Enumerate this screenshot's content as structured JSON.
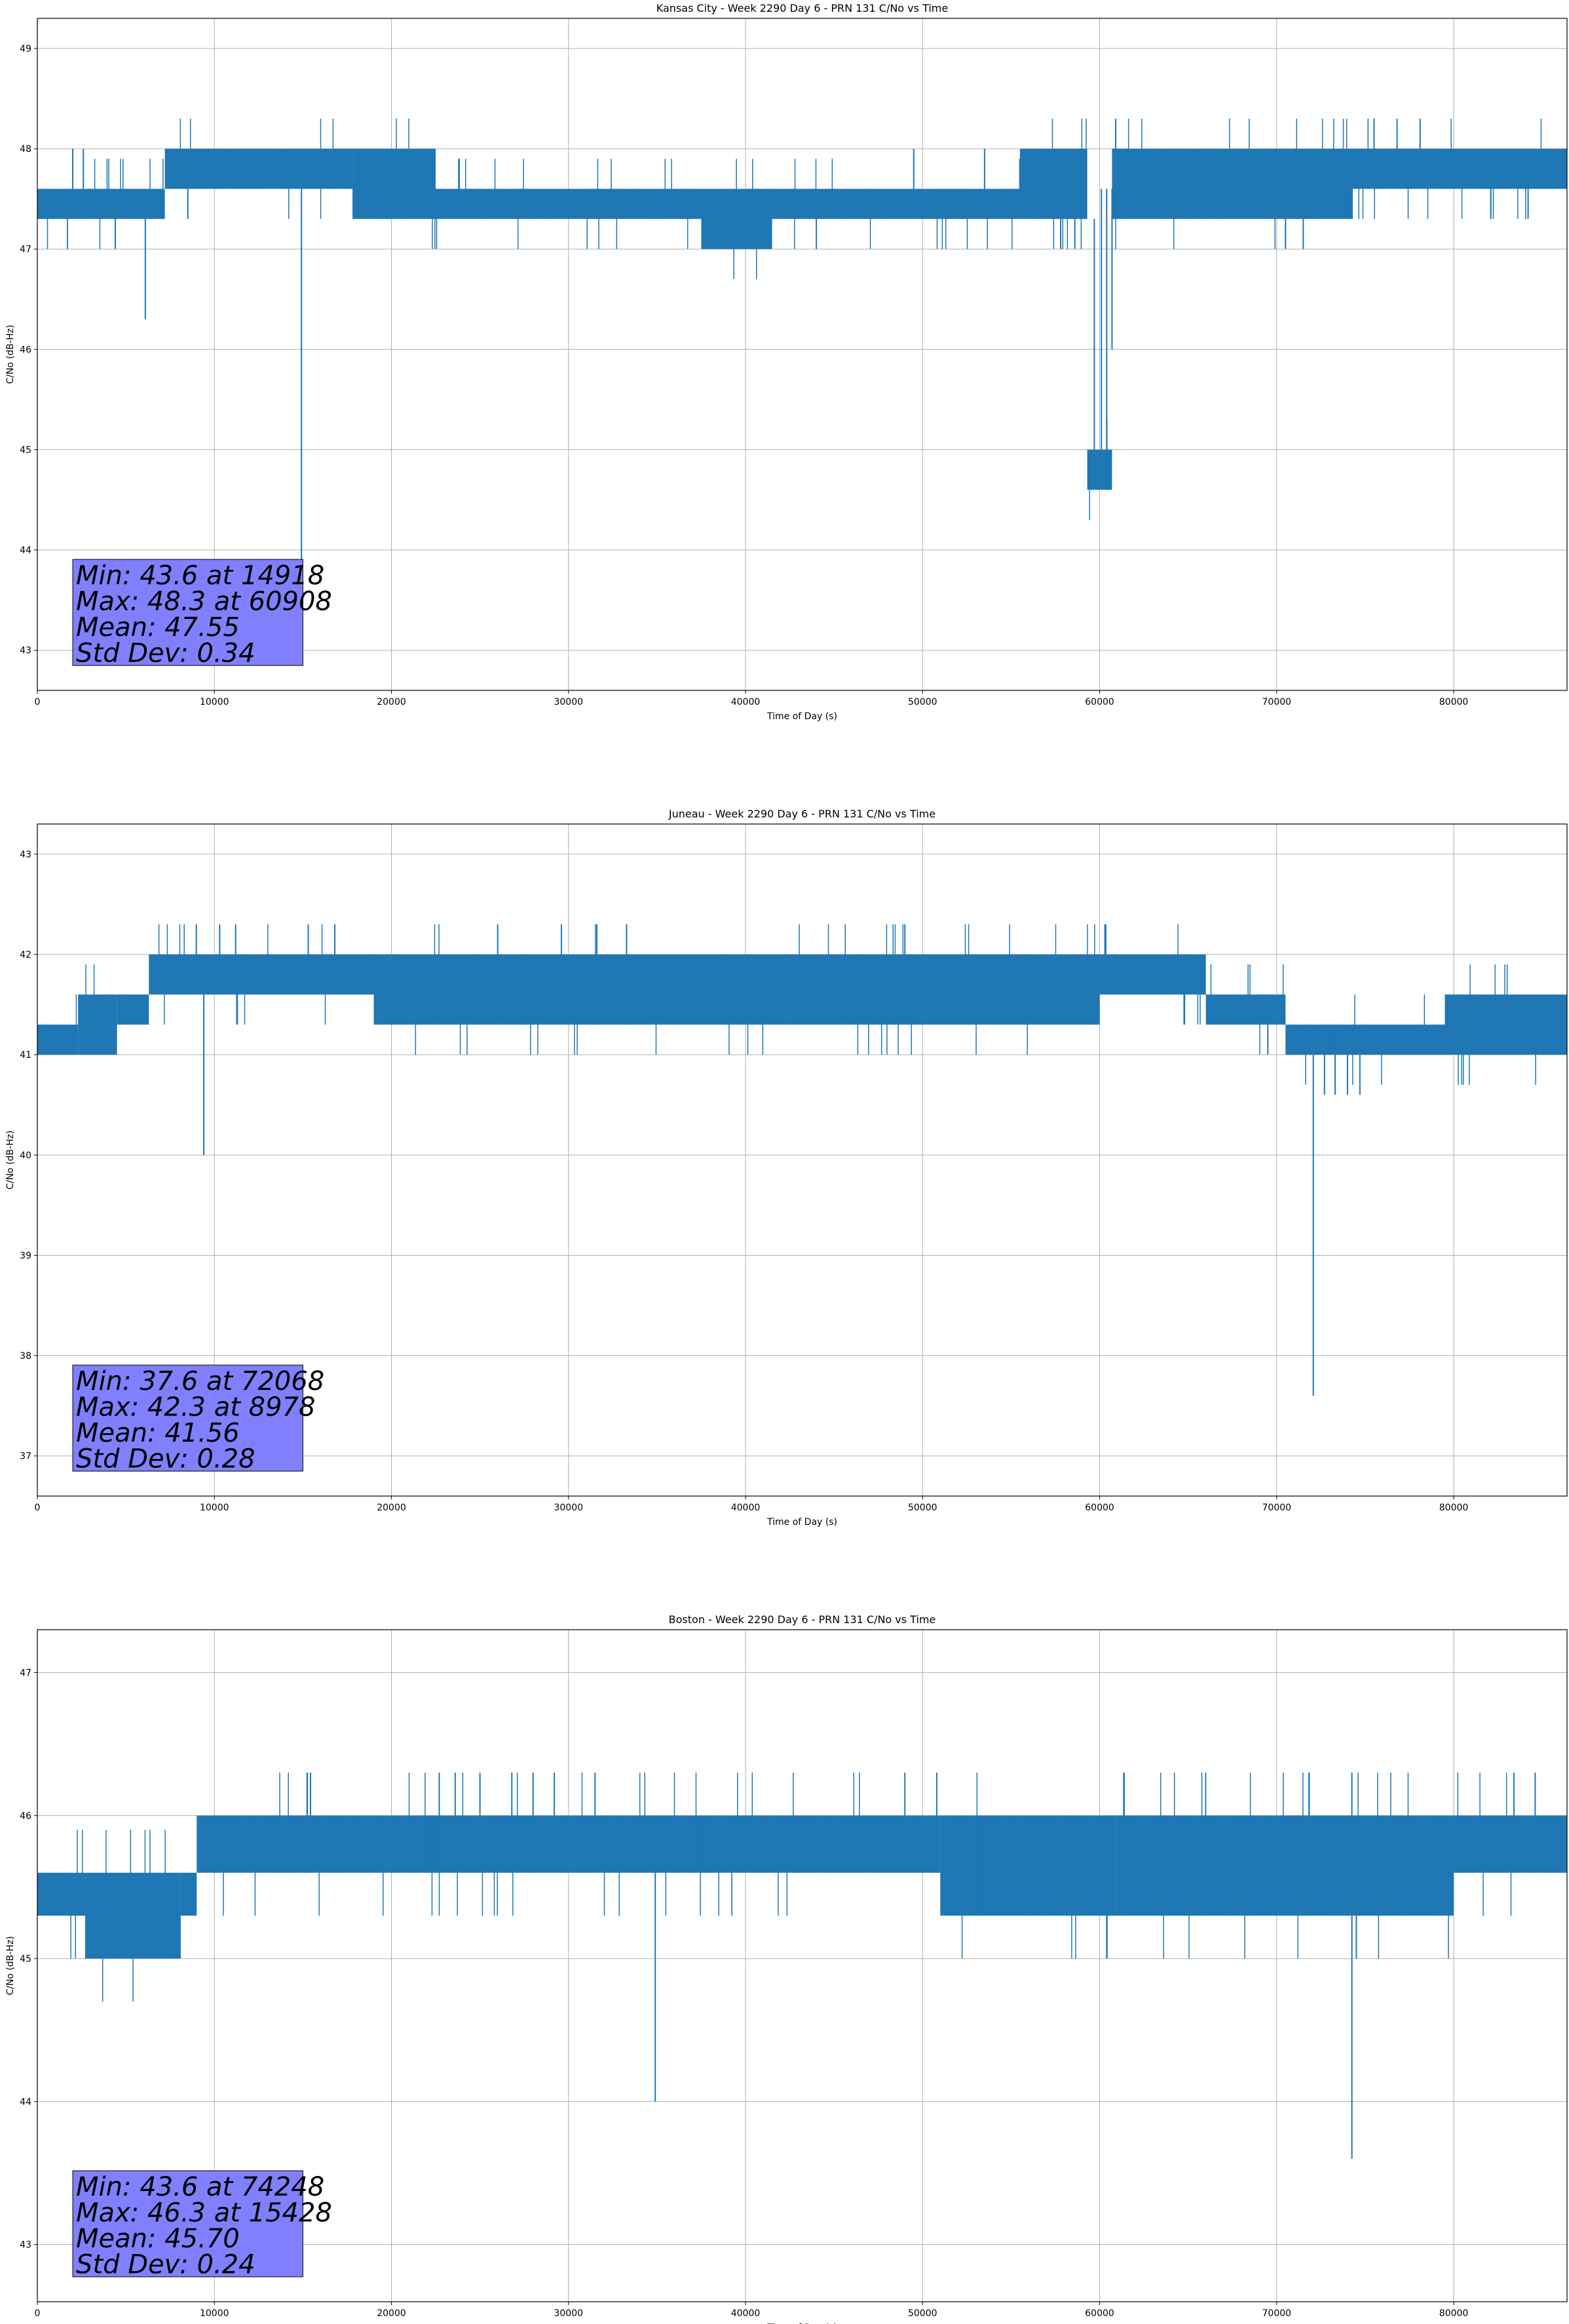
{
  "chart_data": [
    {
      "type": "line",
      "title": "Kansas City - Week 2290 Day 6 - PRN 131 C/No vs Time",
      "xlabel": "Time of Day (s)",
      "ylabel": "C/No (dB-Hz)",
      "xlim": [
        0,
        86400
      ],
      "ylim": [
        42.6,
        49.3
      ],
      "xticks": [
        0,
        10000,
        20000,
        30000,
        40000,
        50000,
        60000,
        70000,
        80000
      ],
      "yticks": [
        43,
        44,
        45,
        46,
        47,
        48,
        49
      ],
      "grid": true,
      "color": "#1f77b4",
      "stats": [
        "Min: 43.6 at 14918",
        "Max: 48.3 at 60908",
        "Mean: 47.55",
        "Std Dev: 0.34"
      ],
      "bands": [
        {
          "x": [
            0,
            7200
          ],
          "y": [
            47.3,
            47.6
          ]
        },
        {
          "x": [
            7200,
            17800
          ],
          "y": [
            47.6,
            48.0
          ]
        },
        {
          "x": [
            17800,
            22500
          ],
          "y": [
            47.3,
            48.0
          ]
        },
        {
          "x": [
            22500,
            37500
          ],
          "y": [
            47.3,
            47.6
          ]
        },
        {
          "x": [
            37500,
            41500
          ],
          "y": [
            47.0,
            47.6
          ]
        },
        {
          "x": [
            41500,
            55500
          ],
          "y": [
            47.3,
            47.6
          ]
        },
        {
          "x": [
            55500,
            59300
          ],
          "y": [
            47.3,
            48.0
          ]
        },
        {
          "x": [
            59300,
            60700
          ],
          "y": [
            44.6,
            45.0
          ]
        },
        {
          "x": [
            60700,
            74300
          ],
          "y": [
            47.3,
            48.0
          ]
        },
        {
          "x": [
            74300,
            86400
          ],
          "y": [
            47.6,
            48.0
          ]
        }
      ],
      "spikes": [
        {
          "x": 2000,
          "y": [
            47.6,
            48.0
          ]
        },
        {
          "x": 2600,
          "y": [
            47.6,
            48.0
          ]
        },
        {
          "x": 4400,
          "y": [
            47.0,
            47.3
          ]
        },
        {
          "x": 6100,
          "y": [
            46.3,
            47.3
          ]
        },
        {
          "x": 8500,
          "y": [
            47.3,
            47.6
          ]
        },
        {
          "x": 14918,
          "y": [
            43.6,
            47.6
          ]
        },
        {
          "x": 19000,
          "y": [
            47.3,
            47.6
          ]
        },
        {
          "x": 21000,
          "y": [
            47.3,
            47.6
          ]
        },
        {
          "x": 28500,
          "y": [
            47.3,
            47.6
          ]
        },
        {
          "x": 44000,
          "y": [
            47.0,
            47.3
          ]
        },
        {
          "x": 49500,
          "y": [
            47.6,
            48.0
          ]
        },
        {
          "x": 53500,
          "y": [
            47.6,
            48.0
          ]
        },
        {
          "x": 57800,
          "y": [
            47.0,
            47.3
          ]
        },
        {
          "x": 58600,
          "y": [
            47.0,
            47.3
          ]
        },
        {
          "x": 59700,
          "y": [
            45.0,
            47.3
          ]
        },
        {
          "x": 60100,
          "y": [
            44.6,
            47.6
          ]
        },
        {
          "x": 60400,
          "y": [
            44.6,
            47.6
          ]
        },
        {
          "x": 60700,
          "y": [
            46.0,
            47.6
          ]
        },
        {
          "x": 60908,
          "y": [
            47.6,
            48.3
          ]
        },
        {
          "x": 70500,
          "y": [
            47.0,
            47.3
          ]
        },
        {
          "x": 71500,
          "y": [
            47.0,
            47.3
          ]
        },
        {
          "x": 75500,
          "y": [
            48.0,
            48.3
          ]
        },
        {
          "x": 76800,
          "y": [
            48.0,
            48.3
          ]
        },
        {
          "x": 78100,
          "y": [
            48.0,
            48.3
          ]
        },
        {
          "x": 82100,
          "y": [
            47.3,
            47.6
          ]
        },
        {
          "x": 84200,
          "y": [
            47.3,
            47.6
          ]
        }
      ]
    },
    {
      "type": "line",
      "title": "Juneau - Week 2290 Day 6 - PRN 131 C/No vs Time",
      "xlabel": "Time of Day (s)",
      "ylabel": "C/No (dB-Hz)",
      "xlim": [
        0,
        86400
      ],
      "ylim": [
        36.6,
        43.3
      ],
      "xticks": [
        0,
        10000,
        20000,
        30000,
        40000,
        50000,
        60000,
        70000,
        80000
      ],
      "yticks": [
        37,
        38,
        39,
        40,
        41,
        42,
        43
      ],
      "grid": true,
      "color": "#1f77b4",
      "stats": [
        "Min: 37.6 at 72068",
        "Max: 42.3 at 8978",
        "Mean: 41.56",
        "Std Dev: 0.28"
      ],
      "bands": [
        {
          "x": [
            0,
            2300
          ],
          "y": [
            41.0,
            41.3
          ]
        },
        {
          "x": [
            2300,
            4500
          ],
          "y": [
            41.0,
            41.6
          ]
        },
        {
          "x": [
            4500,
            6300
          ],
          "y": [
            41.3,
            41.6
          ]
        },
        {
          "x": [
            6300,
            19000
          ],
          "y": [
            41.6,
            42.0
          ]
        },
        {
          "x": [
            19000,
            42500
          ],
          "y": [
            41.3,
            42.0
          ]
        },
        {
          "x": [
            42500,
            60000
          ],
          "y": [
            41.3,
            42.0
          ]
        },
        {
          "x": [
            60000,
            66000
          ],
          "y": [
            41.6,
            42.0
          ]
        },
        {
          "x": [
            66000,
            70500
          ],
          "y": [
            41.3,
            41.6
          ]
        },
        {
          "x": [
            70500,
            79500
          ],
          "y": [
            41.0,
            41.3
          ]
        },
        {
          "x": [
            79500,
            86400
          ],
          "y": [
            41.0,
            41.6
          ]
        }
      ],
      "spikes": [
        {
          "x": 8978,
          "y": [
            42.0,
            42.3
          ]
        },
        {
          "x": 9400,
          "y": [
            40.0,
            41.6
          ]
        },
        {
          "x": 10300,
          "y": [
            42.0,
            42.3
          ]
        },
        {
          "x": 11200,
          "y": [
            42.0,
            42.3
          ]
        },
        {
          "x": 15300,
          "y": [
            42.0,
            42.3
          ]
        },
        {
          "x": 16800,
          "y": [
            42.0,
            42.3
          ]
        },
        {
          "x": 26000,
          "y": [
            42.0,
            42.3
          ]
        },
        {
          "x": 29600,
          "y": [
            42.0,
            42.3
          ]
        },
        {
          "x": 31600,
          "y": [
            42.0,
            42.3
          ]
        },
        {
          "x": 49000,
          "y": [
            42.0,
            42.3
          ]
        },
        {
          "x": 60300,
          "y": [
            42.0,
            42.3
          ]
        },
        {
          "x": 69500,
          "y": [
            41.0,
            41.3
          ]
        },
        {
          "x": 71200,
          "y": [
            41.6,
            41.6
          ]
        },
        {
          "x": 72068,
          "y": [
            37.6,
            41.0
          ]
        },
        {
          "x": 72700,
          "y": [
            40.6,
            41.0
          ]
        },
        {
          "x": 73300,
          "y": [
            40.6,
            41.0
          ]
        },
        {
          "x": 74000,
          "y": [
            40.6,
            41.0
          ]
        },
        {
          "x": 74700,
          "y": [
            40.6,
            41.0
          ]
        }
      ]
    },
    {
      "type": "line",
      "title": "Boston - Week 2290 Day 6 - PRN 131 C/No vs Time",
      "xlabel": "Time of Day (s)",
      "ylabel": "C/No (dB-Hz)",
      "xlim": [
        0,
        86400
      ],
      "ylim": [
        42.6,
        47.3
      ],
      "xticks": [
        0,
        10000,
        20000,
        30000,
        40000,
        50000,
        60000,
        70000,
        80000
      ],
      "yticks": [
        43,
        44,
        45,
        46,
        47
      ],
      "grid": true,
      "color": "#1f77b4",
      "stats": [
        "Min: 43.6 at 74248",
        "Max: 46.3 at 15428",
        "Mean: 45.70",
        "Std Dev: 0.24"
      ],
      "bands": [
        {
          "x": [
            0,
            2700
          ],
          "y": [
            45.3,
            45.6
          ]
        },
        {
          "x": [
            2700,
            8100
          ],
          "y": [
            45.0,
            45.6
          ]
        },
        {
          "x": [
            8100,
            9000
          ],
          "y": [
            45.3,
            45.6
          ]
        },
        {
          "x": [
            9000,
            51000
          ],
          "y": [
            45.6,
            46.0
          ]
        },
        {
          "x": [
            51000,
            61000
          ],
          "y": [
            45.3,
            46.0
          ]
        },
        {
          "x": [
            61000,
            80000
          ],
          "y": [
            45.3,
            46.0
          ]
        },
        {
          "x": [
            80000,
            86400
          ],
          "y": [
            45.6,
            46.0
          ]
        }
      ],
      "spikes": [
        {
          "x": 15428,
          "y": [
            46.0,
            46.3
          ]
        },
        {
          "x": 22700,
          "y": [
            46.0,
            46.3
          ]
        },
        {
          "x": 23600,
          "y": [
            46.0,
            46.3
          ]
        },
        {
          "x": 25000,
          "y": [
            46.0,
            46.3
          ]
        },
        {
          "x": 26800,
          "y": [
            46.0,
            46.3
          ]
        },
        {
          "x": 28000,
          "y": [
            46.0,
            46.3
          ]
        },
        {
          "x": 29200,
          "y": [
            46.0,
            46.3
          ]
        },
        {
          "x": 31500,
          "y": [
            46.0,
            46.3
          ]
        },
        {
          "x": 34900,
          "y": [
            44.0,
            45.6
          ]
        },
        {
          "x": 49000,
          "y": [
            46.0,
            46.3
          ]
        },
        {
          "x": 50800,
          "y": [
            46.0,
            46.3
          ]
        },
        {
          "x": 60400,
          "y": [
            45.0,
            45.3
          ]
        },
        {
          "x": 74248,
          "y": [
            43.6,
            46.3
          ]
        },
        {
          "x": 74500,
          "y": [
            45.0,
            45.6
          ]
        },
        {
          "x": 83400,
          "y": [
            46.0,
            46.3
          ]
        },
        {
          "x": 84600,
          "y": [
            46.0,
            46.3
          ]
        }
      ]
    }
  ]
}
